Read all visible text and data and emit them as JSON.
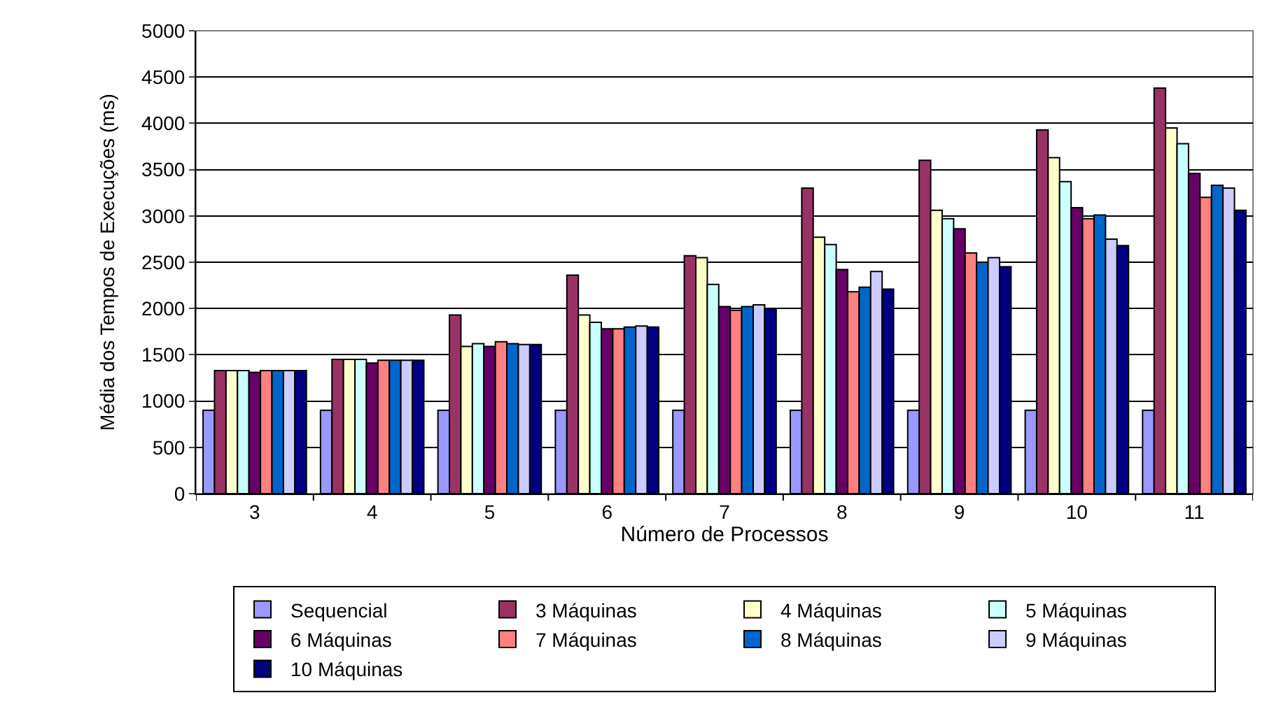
{
  "chart_data": {
    "type": "bar",
    "xlabel": "Número de Processos",
    "ylabel": "Média dos Tempos de Execuções (ms)",
    "categories": [
      "3",
      "4",
      "5",
      "6",
      "7",
      "8",
      "9",
      "10",
      "11"
    ],
    "series": [
      {
        "name": "Sequencial",
        "color": "#9999ff",
        "values": [
          900,
          900,
          900,
          900,
          900,
          900,
          900,
          900,
          900
        ]
      },
      {
        "name": "3 Máquinas",
        "color": "#993366",
        "values": [
          1330,
          1450,
          1930,
          2360,
          2570,
          3300,
          3600,
          3930,
          4380
        ]
      },
      {
        "name": "4 Máquinas",
        "color": "#ffffcc",
        "values": [
          1330,
          1450,
          1590,
          1930,
          2550,
          2770,
          3060,
          3630,
          3950
        ]
      },
      {
        "name": "5 Máquinas",
        "color": "#ccffff",
        "values": [
          1330,
          1450,
          1620,
          1850,
          2260,
          2690,
          2970,
          3370,
          3780
        ]
      },
      {
        "name": "6 Máquinas",
        "color": "#660066",
        "values": [
          1310,
          1410,
          1590,
          1780,
          2020,
          2420,
          2860,
          3090,
          3460
        ]
      },
      {
        "name": "7 Máquinas",
        "color": "#ff8080",
        "values": [
          1330,
          1440,
          1640,
          1780,
          1980,
          2180,
          2600,
          2970,
          3200
        ]
      },
      {
        "name": "8 Máquinas",
        "color": "#0066cc",
        "values": [
          1330,
          1440,
          1620,
          1800,
          2020,
          2230,
          2500,
          3010,
          3330
        ]
      },
      {
        "name": "9 Máquinas",
        "color": "#ccccff",
        "values": [
          1330,
          1440,
          1610,
          1810,
          2040,
          2400,
          2550,
          2750,
          3300
        ]
      },
      {
        "name": "10 Máquinas",
        "color": "#000080",
        "values": [
          1330,
          1440,
          1610,
          1800,
          2000,
          2210,
          2450,
          2680,
          3060
        ]
      }
    ],
    "ylim": [
      0,
      5000
    ],
    "yticks": [
      0,
      500,
      1000,
      1500,
      2000,
      2500,
      3000,
      3500,
      4000,
      4500,
      5000
    ],
    "grid": "y",
    "legend": "bottom"
  }
}
